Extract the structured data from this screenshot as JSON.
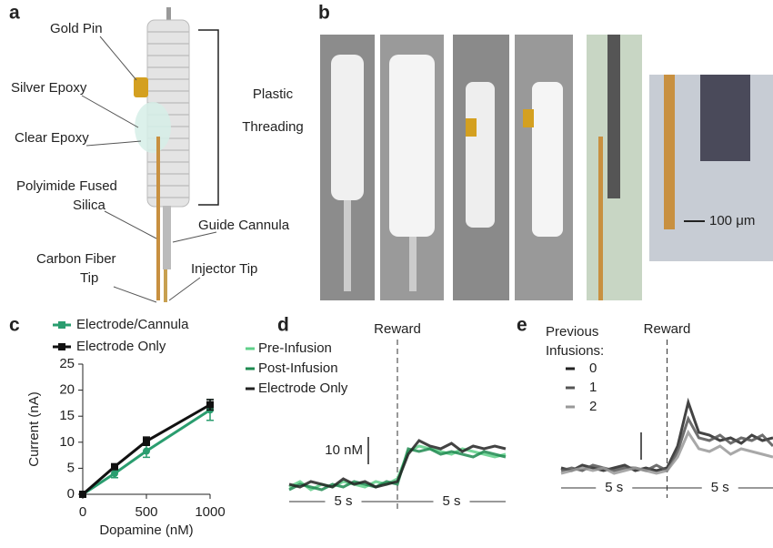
{
  "panel_labels": [
    "a",
    "b",
    "c",
    "d",
    "e"
  ],
  "diagram": {
    "labels": [
      {
        "lines": [
          "Gold Pin"
        ]
      },
      {
        "lines": [
          "Silver Epoxy"
        ]
      },
      {
        "lines": [
          "Clear Epoxy"
        ]
      },
      {
        "lines": [
          "Polyimide Fused",
          "Silica"
        ]
      },
      {
        "lines": [
          "Plastic",
          "Threading"
        ]
      },
      {
        "lines": [
          "Guide Cannula"
        ]
      },
      {
        "lines": [
          "Carbon Fiber",
          "Tip"
        ]
      },
      {
        "lines": [
          "Injector Tip"
        ]
      }
    ]
  },
  "photo_scale": "100 μm",
  "chart_data": [
    {
      "type": "line",
      "xlabel": "Dopamine (nM)",
      "ylabel": "Current (nA)",
      "x": [
        0,
        250,
        500,
        1000
      ],
      "xlim": [
        0,
        1000
      ],
      "xticks": [
        0,
        500,
        1000
      ],
      "ylim": [
        0,
        25
      ],
      "yticks": [
        0,
        5,
        10,
        15,
        20,
        25
      ],
      "series": [
        {
          "name": "Electrode/Cannula",
          "color": "#2a9d6f",
          "values": [
            0,
            4,
            8.3,
            16.2
          ],
          "errors": [
            0,
            0.8,
            1.2,
            2
          ]
        },
        {
          "name": "Electrode Only",
          "color": "#111111",
          "values": [
            0,
            5.3,
            10.2,
            17.2
          ],
          "errors": [
            0,
            0.5,
            0.8,
            1
          ]
        }
      ]
    },
    {
      "type": "trace",
      "marker_label": "Reward",
      "scale_bar": {
        "value": 10,
        "label": "10 nM"
      },
      "time_bar": {
        "value": 5,
        "label": "5 s"
      },
      "x": [
        -5,
        -4.5,
        -4,
        -3.5,
        -3,
        -2.5,
        -2,
        -1.5,
        -1,
        -0.5,
        0,
        0.5,
        1,
        1.5,
        2,
        2.5,
        3,
        3.5,
        4,
        4.5,
        5
      ],
      "xlim": [
        -5,
        5
      ],
      "ylim": [
        -5,
        35
      ],
      "series": [
        {
          "name": "Pre-Infusion",
          "color": "#5fd08a",
          "values": [
            0,
            2,
            -1,
            1,
            0,
            2,
            1,
            0,
            2,
            1,
            3,
            13,
            15,
            14,
            13,
            12,
            14,
            13,
            12,
            11,
            12
          ]
        },
        {
          "name": "Post-Infusion",
          "color": "#1e8a50",
          "values": [
            -1,
            1,
            0,
            -1,
            1,
            0,
            2,
            1,
            0,
            2,
            1,
            14,
            13,
            14,
            12,
            13,
            12,
            11,
            13,
            12,
            11
          ]
        },
        {
          "name": "Electrode Only",
          "color": "#222222",
          "values": [
            1,
            0,
            2,
            1,
            0,
            3,
            1,
            2,
            0,
            1,
            2,
            12,
            17,
            15,
            14,
            16,
            13,
            15,
            14,
            15,
            14
          ]
        }
      ]
    },
    {
      "type": "trace",
      "marker_label": "Reward",
      "legend_title": [
        "Previous",
        "Infusions:"
      ],
      "scale_bar": {
        "value": 10
      },
      "time_bar": {
        "value": 5,
        "label": "5 s"
      },
      "x": [
        -5,
        -4.5,
        -4,
        -3.5,
        -3,
        -2.5,
        -2,
        -1.5,
        -1,
        -0.5,
        0,
        0.5,
        1,
        1.5,
        2,
        2.5,
        3,
        3.5,
        4,
        4.5,
        5
      ],
      "xlim": [
        -5,
        5
      ],
      "ylim": [
        -5,
        35
      ],
      "series": [
        {
          "name": "0",
          "color": "#222222",
          "values": [
            2,
            1,
            3,
            2,
            1,
            2,
            3,
            1,
            2,
            1,
            2,
            10,
            26,
            15,
            14,
            12,
            13,
            11,
            14,
            12,
            13
          ]
        },
        {
          "name": "1",
          "color": "#555555",
          "values": [
            1,
            2,
            1,
            3,
            2,
            1,
            2,
            2,
            1,
            3,
            1,
            8,
            20,
            13,
            12,
            14,
            11,
            13,
            12,
            14,
            10
          ]
        },
        {
          "name": "2",
          "color": "#999999",
          "values": [
            0,
            1,
            2,
            1,
            2,
            0,
            1,
            2,
            1,
            0,
            1,
            6,
            15,
            9,
            8,
            10,
            7,
            9,
            8,
            7,
            6
          ]
        }
      ]
    }
  ]
}
